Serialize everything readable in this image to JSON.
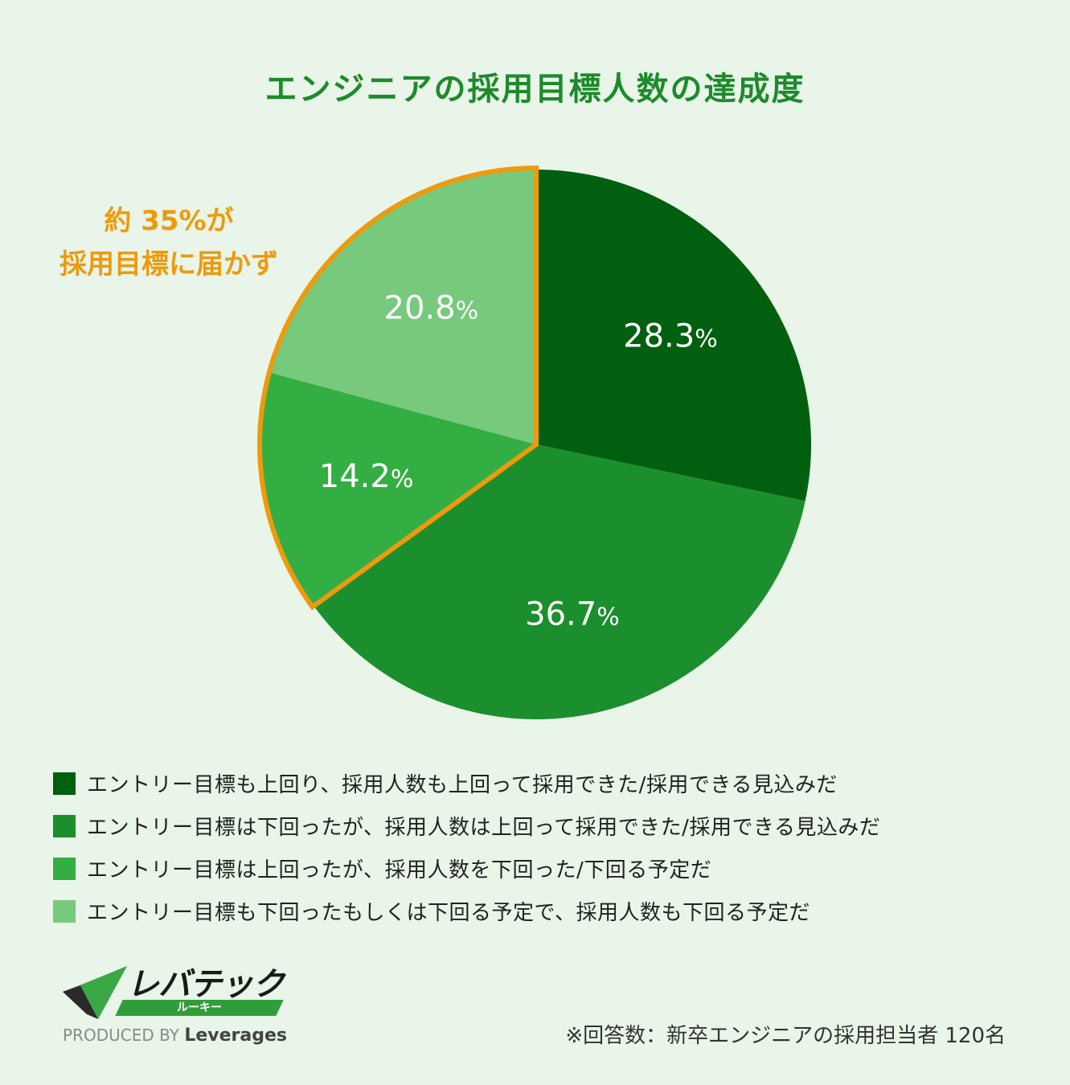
{
  "title": "エンジニアの採用目標人数の達成度",
  "callout": {
    "line1": "約 35%が",
    "line2": "採用目標に届かず",
    "color": "#ee9a0c"
  },
  "chart_data": {
    "type": "pie",
    "title": "エンジニアの採用目標人数の達成度",
    "unit": "%",
    "start": "12 o'clock",
    "direction": "clockwise",
    "slices": [
      {
        "label": "エントリー目標も上回り、採用人数も上回って採用できた/採用できる見込みだ",
        "value": 28.3,
        "display": "28.3",
        "color": "#00600f"
      },
      {
        "label": "エントリー目標は下回ったが、採用人数は上回って採用できた/採用できる見込みだ",
        "value": 36.7,
        "display": "36.7",
        "color": "#1b8f2d"
      },
      {
        "label": "エントリー目標は上回ったが、採用人数を下回った/下回る予定だ",
        "value": 14.2,
        "display": "14.2",
        "color": "#33ae42"
      },
      {
        "label": "エントリー目標も下回ったもしくは下回る予定で、採用人数も下回る予定だ",
        "value": 20.8,
        "display": "20.8",
        "color": "#77c97c"
      }
    ],
    "highlight": {
      "slices": [
        2,
        3
      ],
      "color": "#ee9a0c"
    },
    "legend_position": "bottom"
  },
  "logo": {
    "brand": "レバテック",
    "sub": "ルーキー",
    "produced_by": "PRODUCED BY",
    "company": "Leverages"
  },
  "note": "※回答数：新卒エンジニアの採用担当者 120名"
}
